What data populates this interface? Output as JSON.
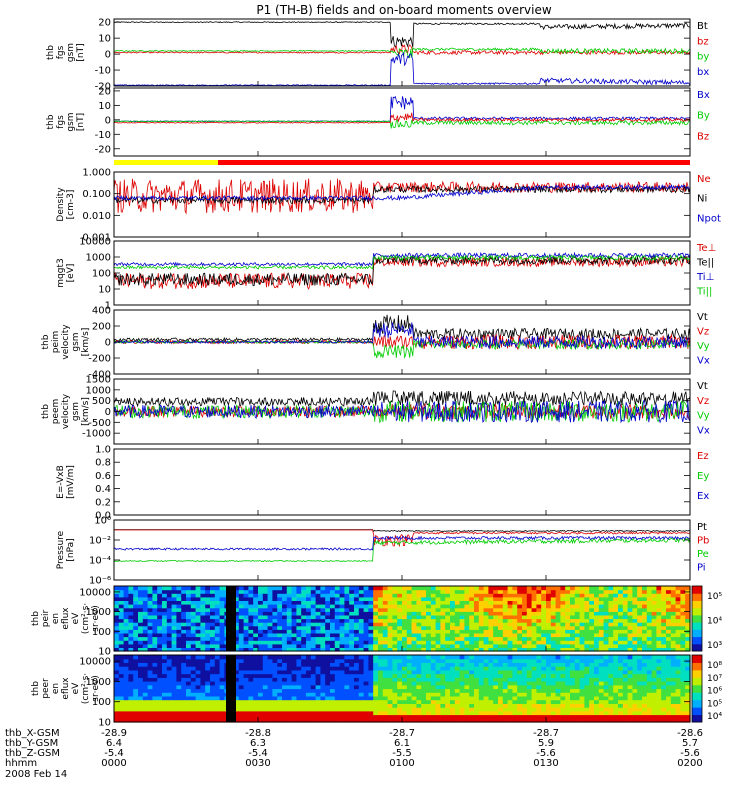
{
  "title": "P1 (TH-B) fields and on-board moments overview",
  "chart_data": {
    "type": "line",
    "title": "P1 (TH-B) fields and on-board moments overview",
    "date": "2008 Feb 14",
    "time_axis": {
      "row_labels": [
        "thb_X-GSM",
        "thb_Y-GSM",
        "thb_Z-GSM",
        "hhmm"
      ],
      "ticks": [
        {
          "values": [
            "-28.9",
            "6.4",
            "-5.4",
            "0000"
          ]
        },
        {
          "values": [
            "-28.8",
            "6.3",
            "-5.4",
            "0030"
          ]
        },
        {
          "values": [
            "-28.7",
            "6.1",
            "-5.5",
            "0100"
          ]
        },
        {
          "values": [
            "-28.7",
            "5.9",
            "-5.6",
            "0130"
          ]
        },
        {
          "values": [
            "-28.6",
            "5.7",
            "-5.6",
            "0200"
          ]
        }
      ]
    },
    "panels": [
      {
        "id": "fgs",
        "ylabel": [
          "thb",
          "fgs",
          "gsm",
          "[nT]"
        ],
        "scale": "linear",
        "ylim": [
          -20,
          22
        ],
        "ticks": [
          "20",
          "10",
          "0",
          "-10",
          "-20"
        ],
        "series": [
          {
            "name": "Bt",
            "color": "#000000"
          },
          {
            "name": "bz",
            "color": "#dd0000"
          },
          {
            "name": "by",
            "color": "#00cc00"
          },
          {
            "name": "bx",
            "color": "#0000cc"
          }
        ]
      },
      {
        "id": "fgs_fac",
        "ylabel": [
          "thb",
          "fgs",
          "gsm",
          "[nT]"
        ],
        "scale": "linear",
        "ylim": [
          -25,
          22
        ],
        "ticks": [
          "20",
          "10",
          "0",
          "-10",
          "-20"
        ],
        "series": [
          {
            "name": "Bx",
            "color": "#0000cc"
          },
          {
            "name": "By",
            "color": "#00cc00"
          },
          {
            "name": "Bz",
            "color": "#dd0000"
          }
        ]
      },
      {
        "id": "density",
        "ylabel": [
          "Density",
          "[cm-3]"
        ],
        "scale": "log",
        "ylim": [
          0.001,
          1.0
        ],
        "ticks": [
          "1.000",
          "0.100",
          "0.010",
          "0.001"
        ],
        "series": [
          {
            "name": "Ne",
            "color": "#dd0000"
          },
          {
            "name": "Ni",
            "color": "#000000"
          },
          {
            "name": "Npot",
            "color": "#0000cc"
          }
        ]
      },
      {
        "id": "temperature",
        "ylabel": [
          "mqgt3",
          "[eV]"
        ],
        "scale": "log",
        "ylim": [
          1,
          10000
        ],
        "ticks": [
          "10000",
          "1000",
          "100",
          "10",
          "1"
        ],
        "series": [
          {
            "name": "Te⊥",
            "color": "#dd0000"
          },
          {
            "name": "Te||",
            "color": "#000000"
          },
          {
            "name": "Ti⊥",
            "color": "#0000cc"
          },
          {
            "name": "Ti||",
            "color": "#00cc00"
          }
        ]
      },
      {
        "id": "ion_velocity",
        "ylabel": [
          "thb",
          "peim",
          "velocity",
          "gsm",
          "[km/s]"
        ],
        "scale": "linear",
        "ylim": [
          -400,
          400
        ],
        "ticks": [
          "400",
          "200",
          "0",
          "-200",
          "-400"
        ],
        "series": [
          {
            "name": "Vt",
            "color": "#000000"
          },
          {
            "name": "Vz",
            "color": "#dd0000"
          },
          {
            "name": "Vy",
            "color": "#00cc00"
          },
          {
            "name": "Vx",
            "color": "#0000cc"
          }
        ]
      },
      {
        "id": "electron_velocity",
        "ylabel": [
          "thb",
          "peem",
          "velocity",
          "gsm",
          "[km/s]"
        ],
        "scale": "linear",
        "ylim": [
          -1500,
          1500
        ],
        "ticks": [
          "1500",
          "1000",
          "500",
          "0",
          "-500",
          "-1000"
        ],
        "series": [
          {
            "name": "Vt",
            "color": "#000000"
          },
          {
            "name": "Vz",
            "color": "#dd0000"
          },
          {
            "name": "Vy",
            "color": "#00cc00"
          },
          {
            "name": "Vx",
            "color": "#0000cc"
          }
        ]
      },
      {
        "id": "efield",
        "ylabel": [
          "E=-VxB",
          "[mV/m]"
        ],
        "scale": "linear",
        "ylim": [
          0,
          1.0
        ],
        "ticks": [
          "1.0",
          "0.8",
          "0.6",
          "0.4",
          "0.2",
          "0.0"
        ],
        "series": [
          {
            "name": "Ez",
            "color": "#dd0000"
          },
          {
            "name": "Ey",
            "color": "#00cc00"
          },
          {
            "name": "Ex",
            "color": "#0000cc"
          }
        ]
      },
      {
        "id": "pressure",
        "ylabel": [
          "Pressure",
          "[nPa]"
        ],
        "scale": "log",
        "ylim": [
          1e-06,
          1
        ],
        "ticks": [
          "10⁰",
          "10⁻²",
          "10⁻⁴",
          "10⁻⁶"
        ],
        "series": [
          {
            "name": "Pt",
            "color": "#000000"
          },
          {
            "name": "Pb",
            "color": "#dd0000"
          },
          {
            "name": "Pe",
            "color": "#00cc00"
          },
          {
            "name": "Pi",
            "color": "#0000cc"
          }
        ]
      },
      {
        "id": "ion_spectrogram",
        "type": "heatmap",
        "ylabel": [
          "thb",
          "peir",
          "en",
          "eflux",
          "eV",
          "(cm²·s·",
          "sr·eV)"
        ],
        "scale": "log",
        "ylim": [
          10,
          20000
        ],
        "ticks": [
          "10000",
          "1000",
          "100",
          "10"
        ],
        "colorbar_ticks": [
          "10⁵",
          "10⁴",
          "10³"
        ]
      },
      {
        "id": "electron_spectrogram",
        "type": "heatmap",
        "ylabel": [
          "thb",
          "peer",
          "en",
          "eflux",
          "eV",
          "(cm²·s·",
          "sr·eV)"
        ],
        "scale": "log",
        "ylim": [
          10,
          20000
        ],
        "ticks": [
          "10000",
          "1000",
          "100",
          "10"
        ],
        "colorbar_ticks": [
          "10⁸",
          "10⁷",
          "10⁶",
          "10⁵",
          "10⁴"
        ]
      }
    ]
  }
}
